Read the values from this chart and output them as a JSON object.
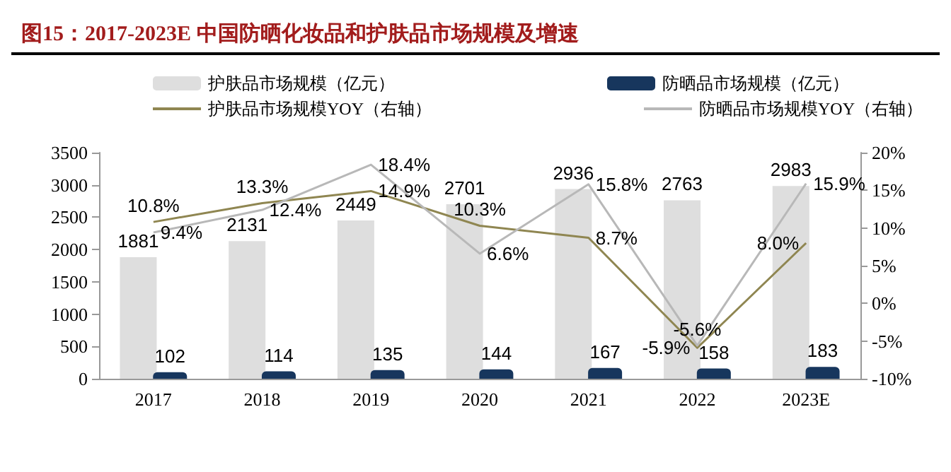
{
  "chart_data": {
    "type": "bar",
    "title": "图15：2017-2023E 中国防晒化妆品和护肤品市场规模及增速",
    "categories": [
      "2017",
      "2018",
      "2019",
      "2020",
      "2021",
      "2022",
      "2023E"
    ],
    "series": [
      {
        "name": "护肤品市场规模（亿元）",
        "color": "#dedede",
        "values": [
          1881,
          2131,
          2449,
          2701,
          2936,
          2763,
          2983
        ],
        "value_labels": [
          "1881",
          "2131",
          "2449",
          "2701",
          "2936",
          "2763",
          "2983"
        ]
      },
      {
        "name": "防晒品市场规模（亿元）",
        "color": "#17365d",
        "values": [
          102,
          114,
          135,
          144,
          167,
          158,
          183
        ],
        "value_labels": [
          "102",
          "114",
          "135",
          "144",
          "167",
          "158",
          "183"
        ]
      },
      {
        "name": "护肤品市场规模YOY（右轴）",
        "type": "line",
        "axis": "y2",
        "color": "#8f8651",
        "values": [
          10.8,
          13.3,
          14.9,
          10.3,
          8.7,
          -5.9,
          8.0
        ],
        "value_labels": [
          "10.8%",
          "13.3%",
          "14.9%",
          "10.3%",
          "8.7%",
          "-5.9%",
          "8.0%"
        ]
      },
      {
        "name": "防晒品市场规模YOY（右轴）",
        "type": "line",
        "axis": "y2",
        "color": "#b8b8b8",
        "values": [
          9.4,
          12.4,
          18.4,
          6.6,
          15.8,
          -5.6,
          15.9
        ],
        "value_labels": [
          "9.4%",
          "12.4%",
          "18.4%",
          "6.6%",
          "15.8%",
          "-5.6%",
          "15.9%"
        ]
      }
    ],
    "ylim": [
      0,
      3500
    ],
    "yticks": [
      0,
      500,
      1000,
      1500,
      2000,
      2500,
      3000,
      3500
    ],
    "y2lim": [
      -10,
      20
    ],
    "y2ticks": [
      {
        "value": -10,
        "label": "-10%"
      },
      {
        "value": -5,
        "label": "-5%"
      },
      {
        "value": 0,
        "label": "0%"
      },
      {
        "value": 5,
        "label": "5%"
      },
      {
        "value": 10,
        "label": "10%"
      },
      {
        "value": 15,
        "label": "15%"
      },
      {
        "value": 20,
        "label": "20%"
      }
    ],
    "legend": "top",
    "grid": false,
    "marker": "none"
  }
}
